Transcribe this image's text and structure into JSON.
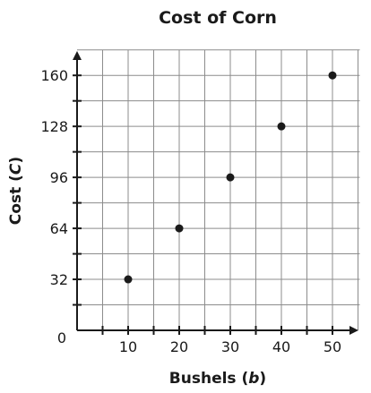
{
  "chart_data": {
    "type": "scatter",
    "title": "Cost of Corn",
    "xlabel": "Bushels",
    "xlabel_var": "b",
    "ylabel": "Cost",
    "ylabel_var": "C",
    "origin_label": "0",
    "xlim": [
      0,
      55
    ],
    "ylim": [
      0,
      176
    ],
    "x_ticks": [
      10,
      20,
      30,
      40,
      50
    ],
    "y_ticks": [
      32,
      64,
      96,
      128,
      160
    ],
    "x_minor_step": 5,
    "y_minor_step": 16,
    "grid": true,
    "points": [
      {
        "x": 10,
        "y": 32
      },
      {
        "x": 20,
        "y": 64
      },
      {
        "x": 30,
        "y": 96
      },
      {
        "x": 40,
        "y": 128
      },
      {
        "x": 50,
        "y": 160
      }
    ],
    "colors": {
      "grid": "#8c8c8c",
      "axis": "#1a1a1a",
      "point": "#1a1a1a"
    }
  }
}
